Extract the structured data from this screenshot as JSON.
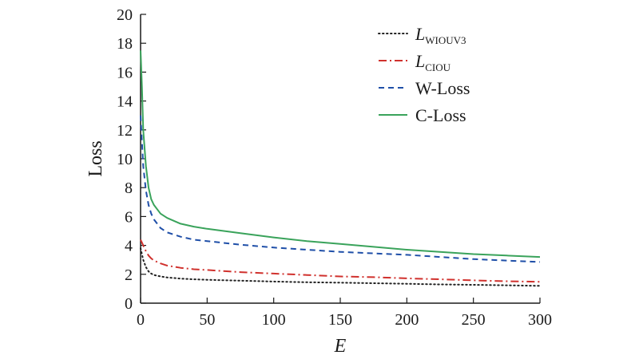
{
  "chart_data": {
    "type": "line",
    "xlabel": "E",
    "ylabel": "Loss",
    "xlim": [
      0,
      300
    ],
    "ylim": [
      0,
      20
    ],
    "xticks": [
      0,
      50,
      100,
      150,
      200,
      250,
      300
    ],
    "yticks": [
      0,
      2,
      4,
      6,
      8,
      10,
      12,
      14,
      16,
      18,
      20
    ],
    "grid": false,
    "legend_position": "top-right",
    "series": [
      {
        "name": "L_WIOUV3",
        "name_main": "L",
        "name_sub": "WIOUV3",
        "color": "#222222",
        "dash": "dotted",
        "x": [
          0,
          2,
          4,
          6,
          8,
          10,
          15,
          20,
          30,
          40,
          50,
          75,
          100,
          125,
          150,
          175,
          200,
          225,
          250,
          275,
          300
        ],
        "y": [
          3.8,
          3.0,
          2.5,
          2.2,
          2.05,
          1.95,
          1.85,
          1.78,
          1.7,
          1.65,
          1.62,
          1.56,
          1.5,
          1.45,
          1.42,
          1.38,
          1.34,
          1.3,
          1.27,
          1.24,
          1.2
        ]
      },
      {
        "name": "L_CIOU",
        "name_main": "L",
        "name_sub": "CIOU",
        "color": "#d0312d",
        "dash": "dashdot",
        "x": [
          0,
          2,
          4,
          6,
          8,
          10,
          15,
          20,
          30,
          40,
          50,
          75,
          100,
          125,
          150,
          175,
          200,
          225,
          250,
          275,
          300
        ],
        "y": [
          4.4,
          4.0,
          3.6,
          3.3,
          3.1,
          2.95,
          2.75,
          2.6,
          2.45,
          2.35,
          2.3,
          2.15,
          2.05,
          1.95,
          1.85,
          1.8,
          1.72,
          1.65,
          1.58,
          1.52,
          1.48
        ]
      },
      {
        "name": "W-Loss",
        "color": "#1f4fa8",
        "dash": "dashed",
        "x": [
          0,
          2,
          4,
          6,
          8,
          10,
          15,
          20,
          30,
          40,
          50,
          75,
          100,
          125,
          150,
          175,
          200,
          225,
          250,
          275,
          300
        ],
        "y": [
          13.0,
          9.5,
          7.8,
          6.8,
          6.2,
          5.8,
          5.2,
          4.9,
          4.6,
          4.4,
          4.3,
          4.05,
          3.85,
          3.7,
          3.55,
          3.45,
          3.35,
          3.2,
          3.05,
          2.95,
          2.85
        ]
      },
      {
        "name": "C-Loss",
        "color": "#3aa35b",
        "dash": "solid",
        "x": [
          0,
          1,
          2,
          4,
          6,
          8,
          10,
          15,
          20,
          30,
          40,
          50,
          75,
          100,
          125,
          150,
          175,
          200,
          225,
          250,
          275,
          300
        ],
        "y": [
          17.5,
          15.0,
          12.0,
          9.5,
          8.0,
          7.2,
          6.8,
          6.2,
          5.9,
          5.5,
          5.3,
          5.15,
          4.85,
          4.55,
          4.3,
          4.1,
          3.9,
          3.7,
          3.55,
          3.4,
          3.3,
          3.2
        ]
      }
    ]
  }
}
